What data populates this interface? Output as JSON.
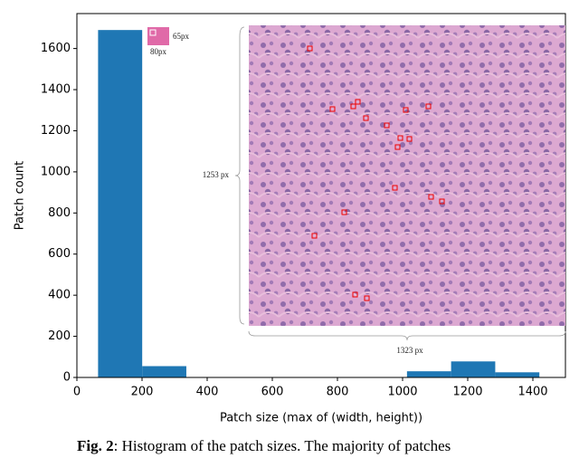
{
  "chart_data": {
    "type": "histogram",
    "xlabel": "Patch size (max of (width, height))",
    "ylabel": "Patch count",
    "bins": [
      65,
      200.5,
      336,
      471.5,
      607,
      742.5,
      878,
      1013.5,
      1149,
      1284.5,
      1420
    ],
    "counts": [
      1690,
      55,
      0,
      0,
      0,
      0,
      0,
      30,
      78,
      25
    ],
    "color": "#1f77b4",
    "xlim": [
      0,
      1500
    ],
    "xticks": [
      0,
      200,
      400,
      600,
      800,
      1000,
      1200,
      1400
    ],
    "ylim": [
      0,
      1770
    ],
    "yticks": [
      0,
      200,
      400,
      600,
      800,
      1000,
      1200,
      1400,
      1600
    ],
    "grid": false,
    "annotations": [
      "65px",
      "80px",
      "1253 px",
      "1323 px"
    ]
  },
  "caption": {
    "label": "Fig. 2",
    "text": ": Histogram of the patch sizes. The majority of patches"
  }
}
